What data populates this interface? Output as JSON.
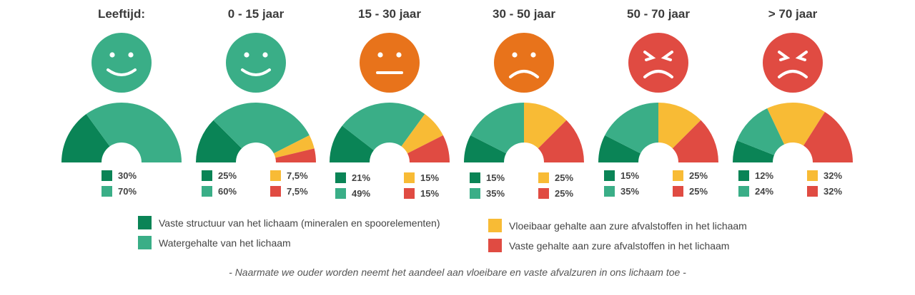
{
  "colors": {
    "mineral": "#0a8456",
    "water": "#3aae87",
    "liquid_acid": "#f8bb35",
    "solid_acid": "#e04b42"
  },
  "face_colors": {
    "green": "#3aae87",
    "orange": "#e8731b",
    "red": "#e04b42"
  },
  "chart_data": {
    "type": "pie",
    "categories": [
      "Leeftijd:",
      "0 - 15 jaar",
      "15 - 30 jaar",
      "30 - 50 jaar",
      "50 - 70 jaar",
      "> 70 jaar"
    ],
    "series": [
      {
        "name": "Vaste structuur van het lichaam (mineralen en spoorelementen)",
        "values": [
          30,
          25,
          21,
          15,
          15,
          12
        ],
        "labels": [
          "30%",
          "25%",
          "21%",
          "15%",
          "15%",
          "12%"
        ]
      },
      {
        "name": "Watergehalte van het lichaam",
        "values": [
          70,
          60,
          49,
          35,
          35,
          24
        ],
        "labels": [
          "70%",
          "60%",
          "49%",
          "35%",
          "35%",
          "24%"
        ]
      },
      {
        "name": "Vloeibaar gehalte aan zure afvalstoffen in het lichaam",
        "values": [
          0,
          7.5,
          15,
          25,
          25,
          32
        ],
        "labels": [
          "",
          "7,5%",
          "15%",
          "25%",
          "25%",
          "32%"
        ]
      },
      {
        "name": "Vaste gehalte aan zure afvalstoffen in het lichaam",
        "values": [
          0,
          7.5,
          15,
          25,
          25,
          32
        ],
        "labels": [
          "",
          "7,5%",
          "15%",
          "25%",
          "25%",
          "32%"
        ]
      }
    ],
    "faces": [
      {
        "mood": "smile",
        "color": "green"
      },
      {
        "mood": "smile",
        "color": "green"
      },
      {
        "mood": "neutral",
        "color": "orange"
      },
      {
        "mood": "frown",
        "color": "orange"
      },
      {
        "mood": "angry",
        "color": "red"
      },
      {
        "mood": "angry",
        "color": "red"
      }
    ]
  },
  "legend": {
    "mineral": "Vaste structuur van het lichaam (mineralen en spoorelementen)",
    "water": "Watergehalte van het lichaam",
    "liquid_acid": "Vloeibaar gehalte aan zure afvalstoffen in het lichaam",
    "solid_acid": "Vaste gehalte aan zure afvalstoffen in het lichaam"
  },
  "footnote": "- Naarmate we ouder worden neemt het aandeel aan vloeibare en vaste afvalzuren in ons lichaam toe -"
}
